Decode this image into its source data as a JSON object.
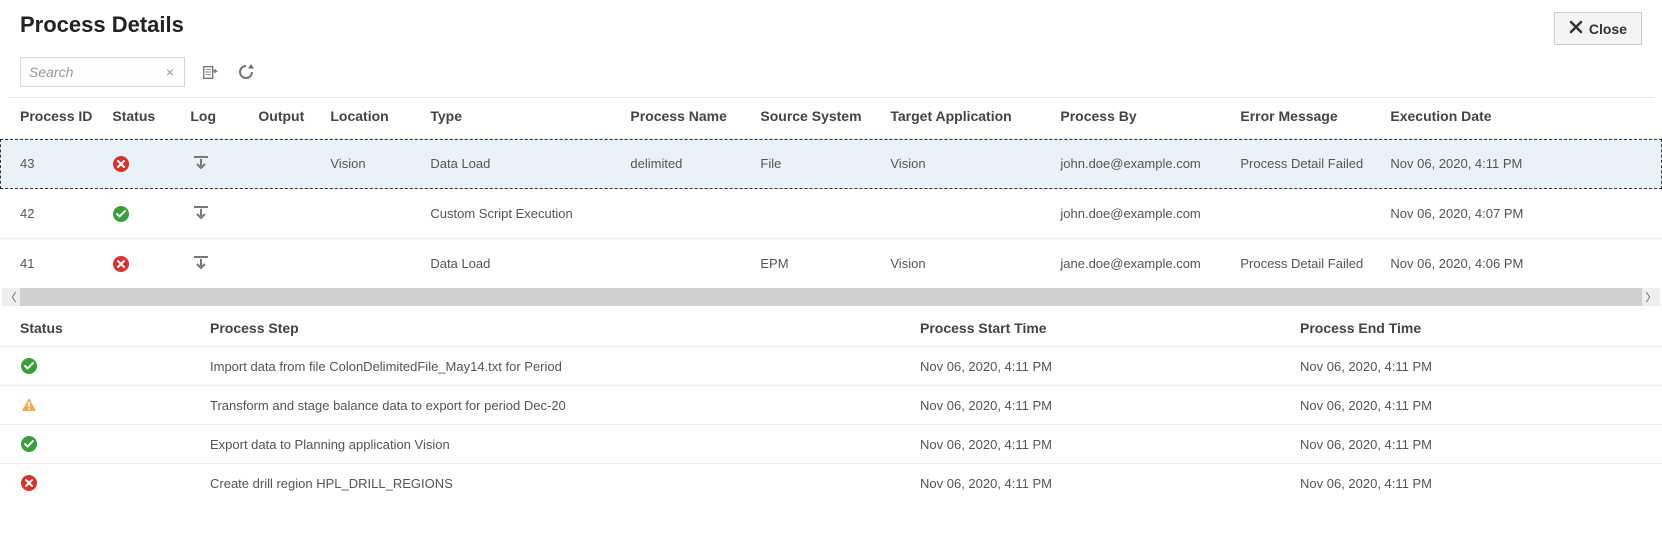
{
  "header": {
    "title": "Process Details",
    "close_label": "Close"
  },
  "toolbar": {
    "search_placeholder": "Search"
  },
  "columns": {
    "process_id": "Process ID",
    "status": "Status",
    "log": "Log",
    "output": "Output",
    "location": "Location",
    "type": "Type",
    "process_name": "Process Name",
    "source_system": "Source System",
    "target_application": "Target Application",
    "process_by": "Process By",
    "error_message": "Error Message",
    "execution_date": "Execution Date"
  },
  "rows": [
    {
      "selected": true,
      "process_id": "43",
      "status": "error",
      "location": "Vision",
      "type": "Data Load",
      "process_name": "delimited",
      "source_system": "File",
      "target_application": "Vision",
      "process_by": "john.doe@example.com",
      "error_message": "Process Detail Failed",
      "execution_date": "Nov 06, 2020, 4:11 PM"
    },
    {
      "selected": false,
      "process_id": "42",
      "status": "success",
      "location": "",
      "type": "Custom Script Execution",
      "process_name": "",
      "source_system": "",
      "target_application": "",
      "process_by": "john.doe@example.com",
      "error_message": "",
      "execution_date": "Nov 06, 2020, 4:07 PM"
    },
    {
      "selected": false,
      "process_id": "41",
      "status": "error",
      "location": "",
      "type": "Data Load",
      "process_name": "",
      "source_system": "EPM",
      "target_application": "Vision",
      "process_by": "jane.doe@example.com",
      "error_message": "Process Detail Failed",
      "execution_date": "Nov 06, 2020, 4:06 PM"
    }
  ],
  "detail_columns": {
    "status": "Status",
    "process_step": "Process Step",
    "start_time": "Process Start Time",
    "end_time": "Process End Time"
  },
  "detail_rows": [
    {
      "status": "success",
      "step": "Import data from file ColonDelimitedFile_May14.txt for Period",
      "start": "Nov 06, 2020, 4:11 PM",
      "end": "Nov 06, 2020, 4:11 PM"
    },
    {
      "status": "warning",
      "step": "Transform and stage balance data to export for period Dec-20",
      "start": "Nov 06, 2020, 4:11 PM",
      "end": "Nov 06, 2020, 4:11 PM"
    },
    {
      "status": "success",
      "step": "Export data to Planning application Vision",
      "start": "Nov 06, 2020, 4:11 PM",
      "end": "Nov 06, 2020, 4:11 PM"
    },
    {
      "status": "error",
      "step": "Create drill region HPL_DRILL_REGIONS",
      "start": "Nov 06, 2020, 4:11 PM",
      "end": "Nov 06, 2020, 4:11 PM"
    }
  ],
  "status_colors": {
    "success": "#3b9e3b",
    "error": "#d9342b",
    "warning": "#f0ad4e"
  }
}
